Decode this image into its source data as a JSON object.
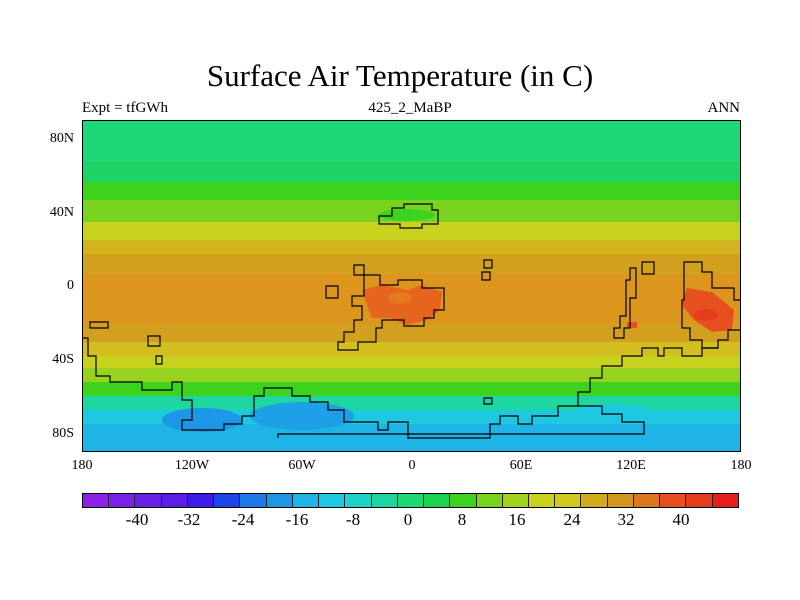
{
  "title": "Surface Air Temperature (in C)",
  "subtitle_left": "Expt = tfGWh",
  "subtitle_center": "425_2_MaBP",
  "subtitle_right": "ANN",
  "y_axis_labels": [
    "80N",
    "40N",
    "0",
    "40S",
    "80S"
  ],
  "x_axis_labels": [
    "180",
    "120W",
    "60W",
    "0",
    "60E",
    "120E",
    "180"
  ],
  "colorbar": {
    "labels": [
      "-40",
      "-32",
      "-24",
      "-16",
      "-8",
      "0",
      "8",
      "16",
      "24",
      "32",
      "40"
    ],
    "colors": [
      "#8c22e6",
      "#7a21e8",
      "#6a1fe6",
      "#5a1ee6",
      "#3c1ce6",
      "#1e46e6",
      "#1e78e6",
      "#1e96e6",
      "#1eb4e6",
      "#1ec8e0",
      "#1ed2c8",
      "#1ed6a0",
      "#1ed878",
      "#1ed250",
      "#3cd21e",
      "#78d21e",
      "#a0d21e",
      "#c8d21e",
      "#d2c81e",
      "#d2aa1e",
      "#d2961e",
      "#dc781e",
      "#e6501e",
      "#e63c1e",
      "#e61e1e"
    ]
  },
  "chart_data": {
    "type": "heatmap",
    "variable": "Surface Air Temperature",
    "units": "C",
    "experiment": "tfGWh",
    "period": "425_2_MaBP",
    "season": "ANN",
    "x_range": [
      -180,
      180
    ],
    "y_range": [
      -90,
      90
    ],
    "color_levels": [
      -40,
      -32,
      -24,
      -16,
      -8,
      0,
      8,
      16,
      24,
      32,
      40
    ],
    "latitude_band_mean_C": [
      {
        "lat": 85,
        "value": 10
      },
      {
        "lat": 70,
        "value": 10
      },
      {
        "lat": 60,
        "value": 14
      },
      {
        "lat": 50,
        "value": 16
      },
      {
        "lat": 40,
        "value": 20
      },
      {
        "lat": 30,
        "value": 24
      },
      {
        "lat": 20,
        "value": 26
      },
      {
        "lat": 0,
        "value": 28
      },
      {
        "lat": -20,
        "value": 26
      },
      {
        "lat": -35,
        "value": 22
      },
      {
        "lat": -45,
        "value": 16
      },
      {
        "lat": -55,
        "value": 10
      },
      {
        "lat": -65,
        "value": 2
      },
      {
        "lat": -75,
        "value": -4
      },
      {
        "lat": -85,
        "value": -8
      }
    ],
    "hot_spots": [
      {
        "lon": -20,
        "lat": -5,
        "value": 32
      },
      {
        "lon": 10,
        "lat": -5,
        "value": 32
      },
      {
        "lon": 160,
        "lat": -10,
        "value": 34
      }
    ]
  }
}
